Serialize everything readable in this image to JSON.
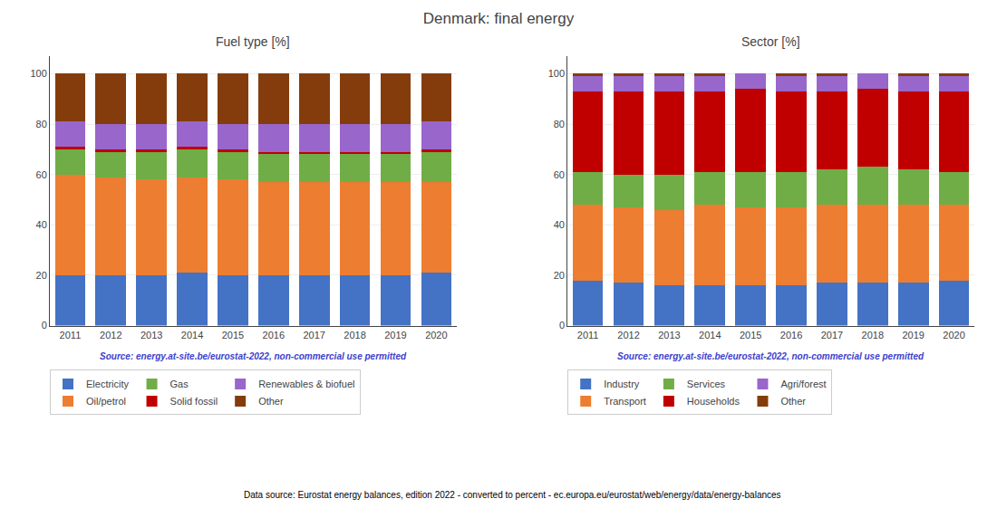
{
  "title": "Denmark: final energy",
  "annotations": [
    {
      "text": "Data source: Eurostat energy balances, edition 2022 - converted to percent - ec.europa.eu/eurostat/web/energy/data/energy-balances"
    }
  ],
  "chart_data": [
    {
      "type": "bar",
      "stacked": true,
      "title": "Fuel type [%]",
      "categories": [
        "2011",
        "2012",
        "2013",
        "2014",
        "2015",
        "2016",
        "2017",
        "2018",
        "2019",
        "2020"
      ],
      "series": [
        {
          "name": "Electricity",
          "color": "#4472c4",
          "values": [
            20,
            20,
            20,
            21,
            20,
            20,
            20,
            20,
            20,
            21
          ]
        },
        {
          "name": "Oil/petrol",
          "color": "#ed7d31",
          "values": [
            40,
            39,
            38,
            38,
            38,
            37,
            37,
            37,
            37,
            36
          ]
        },
        {
          "name": "Gas",
          "color": "#70ad47",
          "values": [
            10,
            10,
            11,
            11,
            11,
            11,
            11,
            11,
            11,
            12
          ]
        },
        {
          "name": "Solid fossil",
          "color": "#c00000",
          "values": [
            1,
            1,
            1,
            1,
            1,
            1,
            1,
            1,
            1,
            1
          ]
        },
        {
          "name": "Renewables & biofuel",
          "color": "#9966cc",
          "values": [
            10,
            10,
            10,
            10,
            10,
            11,
            11,
            11,
            11,
            11
          ]
        },
        {
          "name": "Other",
          "color": "#843c0c",
          "values": [
            19,
            20,
            20,
            19,
            20,
            20,
            20,
            20,
            20,
            19
          ]
        }
      ],
      "ylim": [
        0,
        107
      ],
      "yticks": [
        0,
        20,
        40,
        60,
        80,
        100
      ],
      "grid": true,
      "legend": "bottom",
      "annotations": [
        {
          "text": "Source: energy.at-site.be/eurostat-2022, non-commercial use permitted",
          "color": "#4040cc"
        }
      ]
    },
    {
      "type": "bar",
      "stacked": true,
      "title": "Sector [%]",
      "categories": [
        "2011",
        "2012",
        "2013",
        "2014",
        "2015",
        "2016",
        "2017",
        "2018",
        "2019",
        "2020"
      ],
      "series": [
        {
          "name": "Industry",
          "color": "#4472c4",
          "values": [
            18,
            17,
            16,
            16,
            16,
            16,
            17,
            17,
            17,
            18
          ]
        },
        {
          "name": "Transport",
          "color": "#ed7d31",
          "values": [
            30,
            30,
            30,
            32,
            31,
            31,
            31,
            31,
            31,
            30
          ]
        },
        {
          "name": "Services",
          "color": "#70ad47",
          "values": [
            13,
            13,
            14,
            13,
            14,
            14,
            14,
            15,
            14,
            13
          ]
        },
        {
          "name": "Households",
          "color": "#c00000",
          "values": [
            32,
            33,
            33,
            32,
            33,
            32,
            31,
            31,
            31,
            32
          ]
        },
        {
          "name": "Agri/forest",
          "color": "#9966cc",
          "values": [
            6,
            6,
            6,
            6,
            6,
            6,
            6,
            6,
            6,
            6
          ]
        },
        {
          "name": "Other",
          "color": "#843c0c",
          "values": [
            1,
            1,
            1,
            1,
            0,
            1,
            1,
            0,
            1,
            1
          ]
        }
      ],
      "ylim": [
        0,
        107
      ],
      "yticks": [
        0,
        20,
        40,
        60,
        80,
        100
      ],
      "grid": true,
      "legend": "bottom",
      "annotations": [
        {
          "text": "Source: energy.at-site.be/eurostat-2022, non-commercial use permitted",
          "color": "#4040cc"
        }
      ]
    }
  ]
}
